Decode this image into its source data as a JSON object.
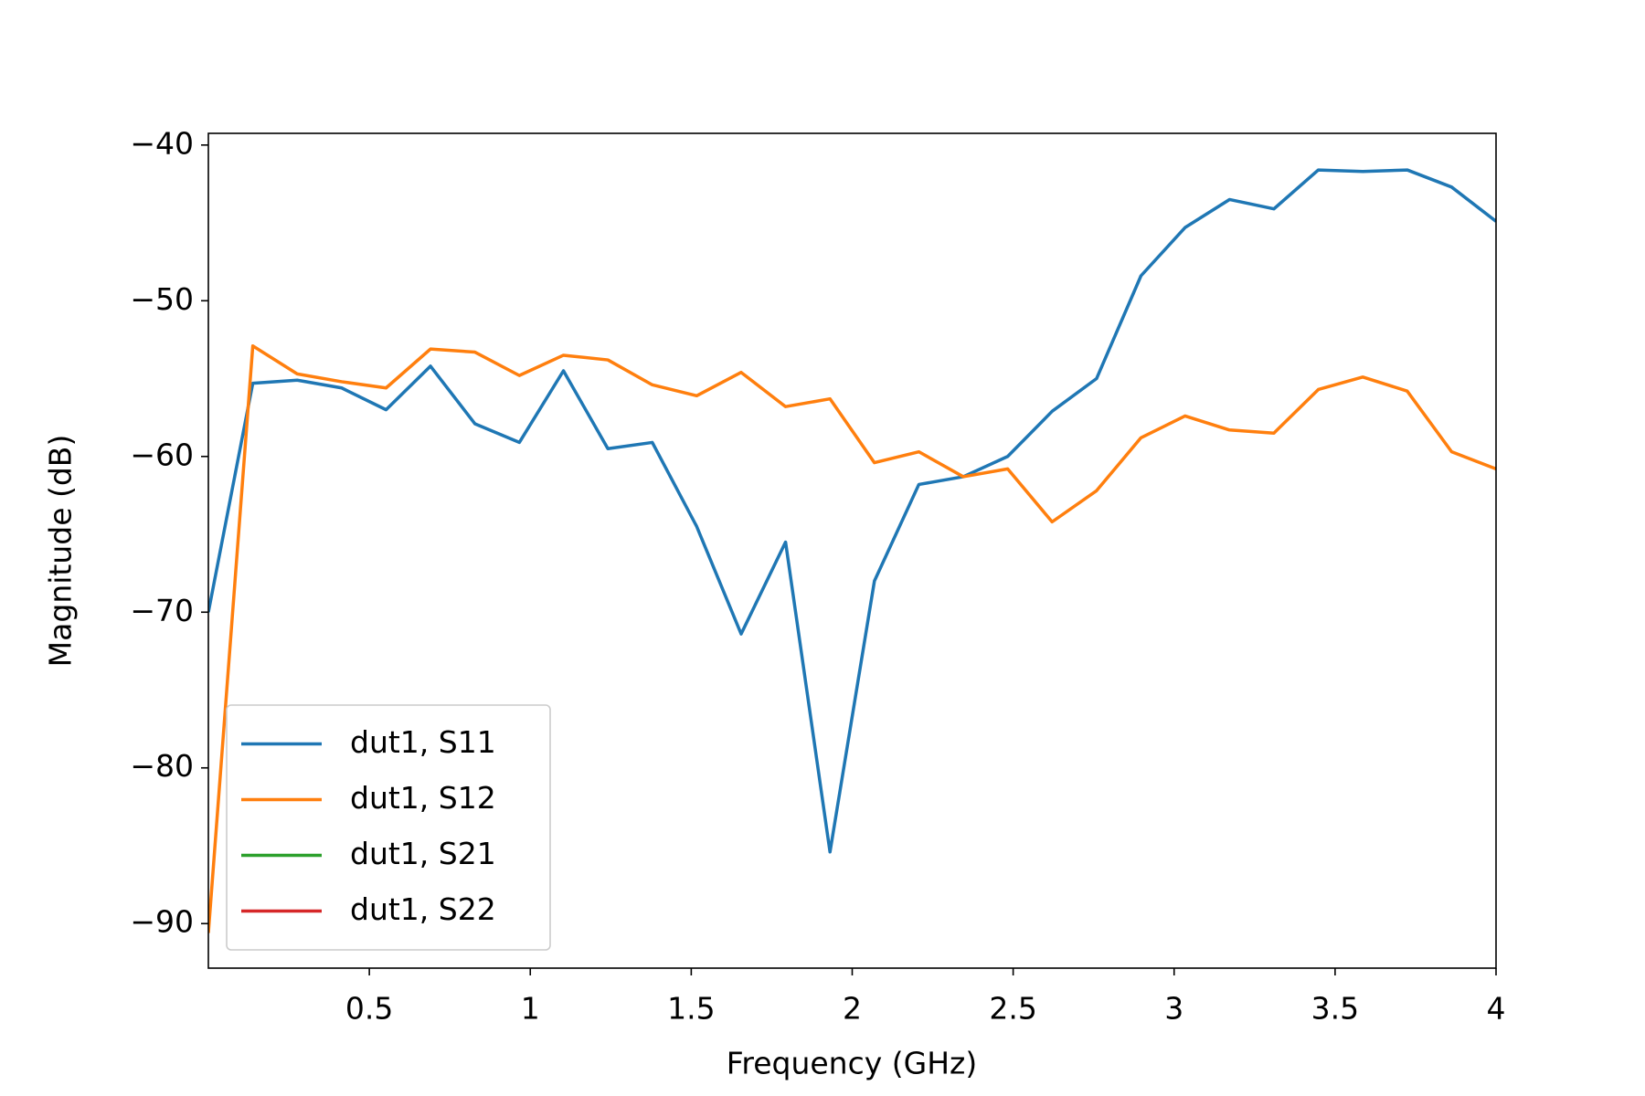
{
  "chart_data": {
    "type": "line",
    "x_label": "Frequency (GHz)",
    "y_label": "Magnitude (dB)",
    "x": [
      0,
      0.138,
      0.276,
      0.414,
      0.552,
      0.69,
      0.828,
      0.966,
      1.103,
      1.241,
      1.379,
      1.517,
      1.655,
      1.793,
      1.931,
      2.069,
      2.207,
      2.345,
      2.483,
      2.621,
      2.759,
      2.897,
      3.034,
      3.172,
      3.31,
      3.448,
      3.586,
      3.724,
      3.862,
      4
    ],
    "series": [
      {
        "name": "dut1, S11",
        "color": "#1f77b4",
        "values": [
          -70.0,
          -55.3,
          -55.1,
          -55.6,
          -57.0,
          -54.2,
          -57.9,
          -59.1,
          -54.5,
          -59.5,
          -59.1,
          -64.5,
          -71.4,
          -65.5,
          -85.4,
          -68.0,
          -61.8,
          -61.3,
          -60.0,
          -57.1,
          -55.0,
          -48.4,
          -45.3,
          -43.5,
          -44.1,
          -41.6,
          -41.7,
          -41.6,
          -42.7,
          -44.9
        ]
      },
      {
        "name": "dut1, S12",
        "color": "#ff7f0e",
        "values": [
          -90.6,
          -52.9,
          -54.7,
          -55.2,
          -55.6,
          -53.1,
          -53.3,
          -54.8,
          -53.5,
          -53.8,
          -55.4,
          -56.1,
          -54.6,
          -56.8,
          -56.3,
          -60.4,
          -59.7,
          -61.3,
          -60.8,
          -64.2,
          -62.2,
          -58.8,
          -57.4,
          -58.3,
          -58.5,
          -55.7,
          -54.9,
          -55.8,
          -59.7,
          -60.8
        ]
      },
      {
        "name": "dut1, S21",
        "color": "#2ca02c",
        "values": [
          null,
          null,
          null,
          null,
          null,
          null,
          null,
          null,
          null,
          null,
          null,
          null,
          null,
          null,
          null,
          null,
          null,
          null,
          null,
          null,
          null,
          null,
          null,
          null,
          null,
          null,
          null,
          null,
          null,
          null
        ]
      },
      {
        "name": "dut1, S22",
        "color": "#d62728",
        "values": [
          null,
          null,
          null,
          null,
          null,
          null,
          null,
          null,
          null,
          null,
          null,
          null,
          null,
          null,
          null,
          null,
          null,
          null,
          null,
          null,
          null,
          null,
          null,
          null,
          null,
          null,
          null,
          null,
          null,
          null
        ]
      }
    ],
    "xlim": [
      0,
      4
    ],
    "xticks": [
      0.5,
      1,
      1.5,
      2,
      2.5,
      3,
      3.5,
      4
    ],
    "ylim": [
      -92.86,
      -39.25
    ],
    "yticks": [
      {
        "value": -40,
        "label": "−40"
      },
      {
        "value": -50,
        "label": "−50"
      },
      {
        "value": -60,
        "label": "−60"
      },
      {
        "value": -70,
        "label": "−70"
      },
      {
        "value": -80,
        "label": "−80"
      },
      {
        "value": -90,
        "label": "−90"
      }
    ],
    "grid": false,
    "legend": "lower left"
  }
}
